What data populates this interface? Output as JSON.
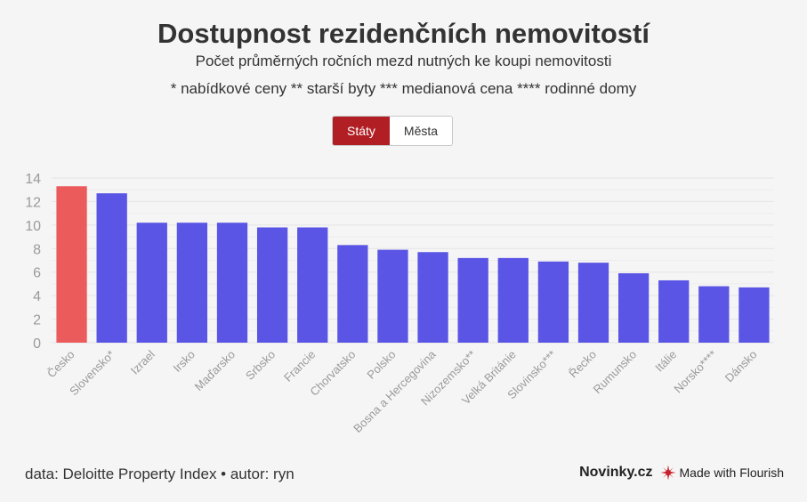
{
  "title": "Dostupnost rezidenčních nemovitostí",
  "subtitle": "Počet průměrných ročních mezd nutných ke koupi nemovitosti",
  "note": "* nabídkové ceny ** starší byty *** medianová cena **** rodinné domy",
  "toggle": {
    "states_label": "Státy",
    "cities_label": "Města",
    "active": "states"
  },
  "footer": {
    "source": "data: Deloitte Property Index • autor: ryn",
    "brand": "Novinky.cz",
    "flourish": "Made with Flourish"
  },
  "colors": {
    "highlight": "#ec5b5c",
    "bar": "#5a55e4",
    "accent": "#b11f24"
  },
  "chart_data": {
    "type": "bar",
    "categories": [
      "Česko",
      "Slovensko*",
      "Izrael",
      "Irsko",
      "Maďarsko",
      "Srbsko",
      "Francie",
      "Chorvatsko",
      "Polsko",
      "Bosna a Hercegovina",
      "Nizozemsko**",
      "Velká Británie",
      "Slovinsko***",
      "Řecko",
      "Rumunsko",
      "Itálie",
      "Norsko****",
      "Dánsko"
    ],
    "values": [
      13.3,
      12.7,
      10.2,
      10.2,
      10.2,
      9.8,
      9.8,
      8.3,
      7.9,
      7.7,
      7.2,
      7.2,
      6.9,
      6.8,
      5.9,
      5.3,
      4.8,
      4.7
    ],
    "highlight_index": 0,
    "ylim": [
      0,
      14
    ],
    "yticks": [
      0,
      2,
      4,
      6,
      8,
      10,
      12,
      14
    ],
    "grid": true
  }
}
